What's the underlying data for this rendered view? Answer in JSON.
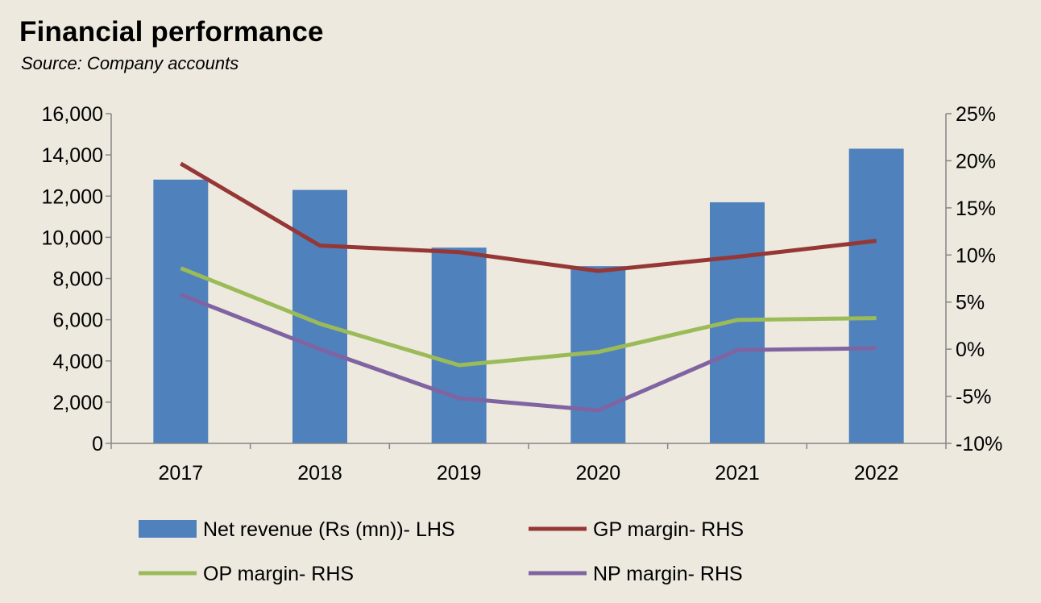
{
  "chart_data": {
    "type": "bar",
    "title": "Financial performance",
    "subtitle": "Source: Company accounts",
    "categories": [
      "2017",
      "2018",
      "2019",
      "2020",
      "2021",
      "2022"
    ],
    "y_left": {
      "min": 0,
      "max": 16000,
      "ticks": [
        0,
        2000,
        4000,
        6000,
        8000,
        10000,
        12000,
        14000,
        16000
      ],
      "tick_labels": [
        "0",
        "2,000",
        "4,000",
        "6,000",
        "8,000",
        "10,000",
        "12,000",
        "14,000",
        "16,000"
      ]
    },
    "y_right": {
      "min": -10,
      "max": 25,
      "ticks": [
        -10,
        -5,
        0,
        5,
        10,
        15,
        20,
        25
      ],
      "tick_labels": [
        "-10%",
        "-5%",
        "0%",
        "5%",
        "10%",
        "15%",
        "20%",
        "25%"
      ]
    },
    "series": [
      {
        "name": "Net revenue (Rs (mn))- LHS",
        "kind": "bar",
        "axis": "left",
        "color": "#4f81bd",
        "values": [
          12800,
          12300,
          9500,
          8600,
          11700,
          14300
        ]
      },
      {
        "name": "GP margin- RHS",
        "kind": "line",
        "axis": "right",
        "color": "#953735",
        "values": [
          19.7,
          11.0,
          10.3,
          8.3,
          9.8,
          11.5
        ]
      },
      {
        "name": "OP margin- RHS",
        "kind": "line",
        "axis": "right",
        "color": "#9bbb59",
        "values": [
          8.6,
          2.7,
          -1.7,
          -0.3,
          3.1,
          3.3
        ]
      },
      {
        "name": "NP margin- RHS",
        "kind": "line",
        "axis": "right",
        "color": "#8064a2",
        "values": [
          5.8,
          0.0,
          -5.2,
          -6.5,
          -0.1,
          0.1
        ]
      }
    ],
    "legend_position": "bottom",
    "grid": false
  }
}
